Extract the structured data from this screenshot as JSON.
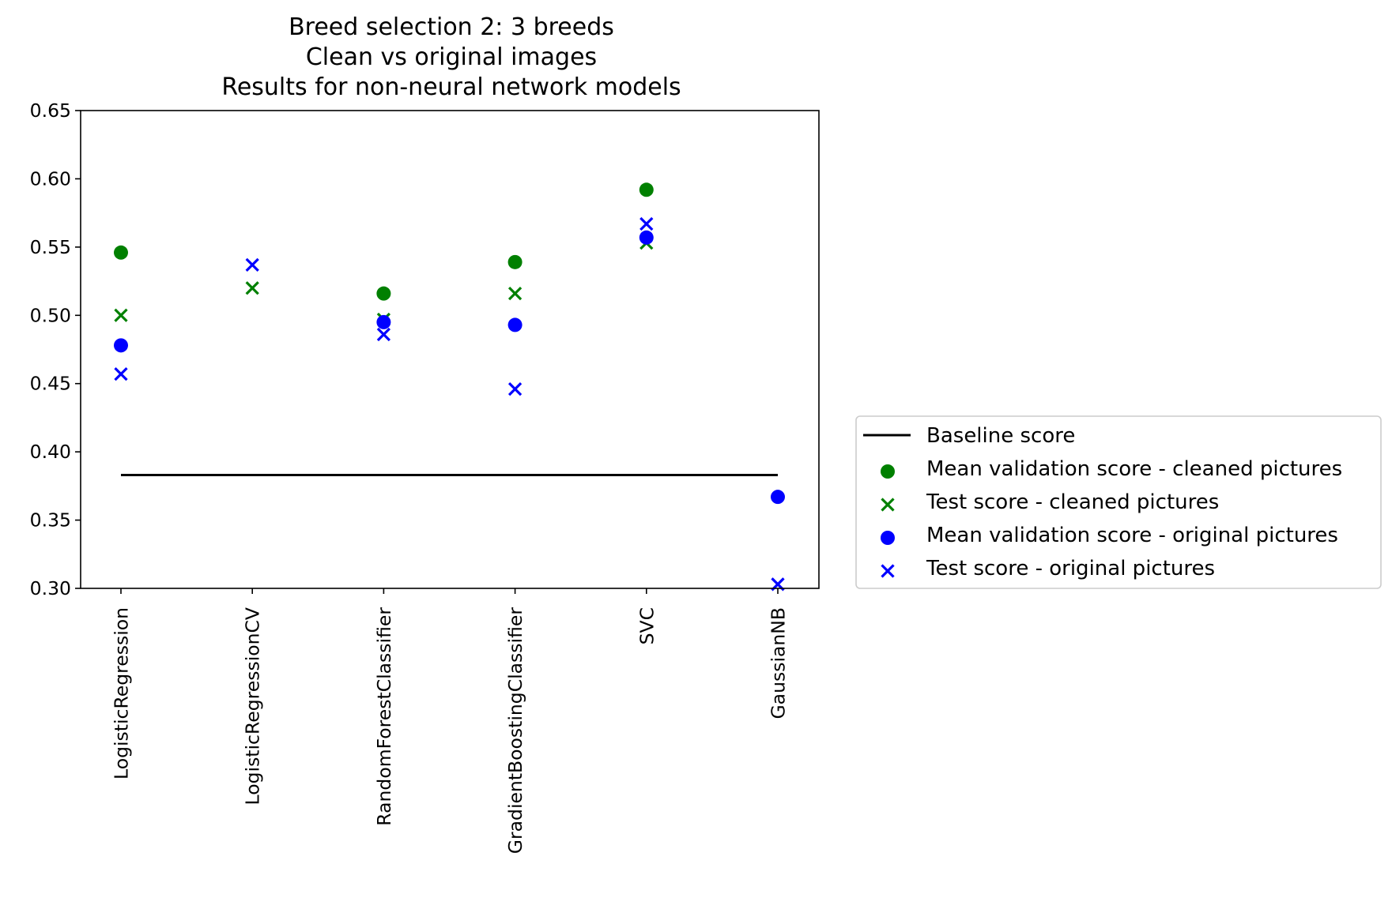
{
  "chart_data": {
    "type": "scatter",
    "title": [
      "Breed selection 2: 3 breeds",
      "Clean vs original images",
      "Results for non-neural network models"
    ],
    "xlabel": "",
    "ylabel": "",
    "categories": [
      "LogisticRegression",
      "LogisticRegressionCV",
      "RandomForestClassifier",
      "GradientBoostingClassifier",
      "SVC",
      "GaussianNB"
    ],
    "ylim": [
      0.3,
      0.65
    ],
    "yticks": [
      "0.30",
      "0.35",
      "0.40",
      "0.45",
      "0.50",
      "0.55",
      "0.60",
      "0.65"
    ],
    "grid": false,
    "legend_position": "outside-right",
    "baseline": {
      "name": "Baseline score",
      "value": 0.383,
      "color": "#000000"
    },
    "series": [
      {
        "name": "Mean validation score - cleaned pictures",
        "marker": "circle",
        "color": "#008000",
        "values": [
          0.546,
          null,
          0.516,
          0.539,
          0.592,
          null
        ]
      },
      {
        "name": "Test score - cleaned pictures",
        "marker": "x",
        "color": "#008000",
        "values": [
          0.5,
          0.52,
          0.497,
          0.516,
          0.553,
          null
        ]
      },
      {
        "name": "Mean validation score - original pictures",
        "marker": "circle",
        "color": "#0000ff",
        "values": [
          0.478,
          null,
          0.495,
          0.493,
          0.557,
          0.367
        ]
      },
      {
        "name": "Test score - original pictures",
        "marker": "x",
        "color": "#0000ff",
        "values": [
          0.457,
          0.537,
          0.486,
          0.446,
          0.567,
          0.303
        ]
      }
    ]
  }
}
